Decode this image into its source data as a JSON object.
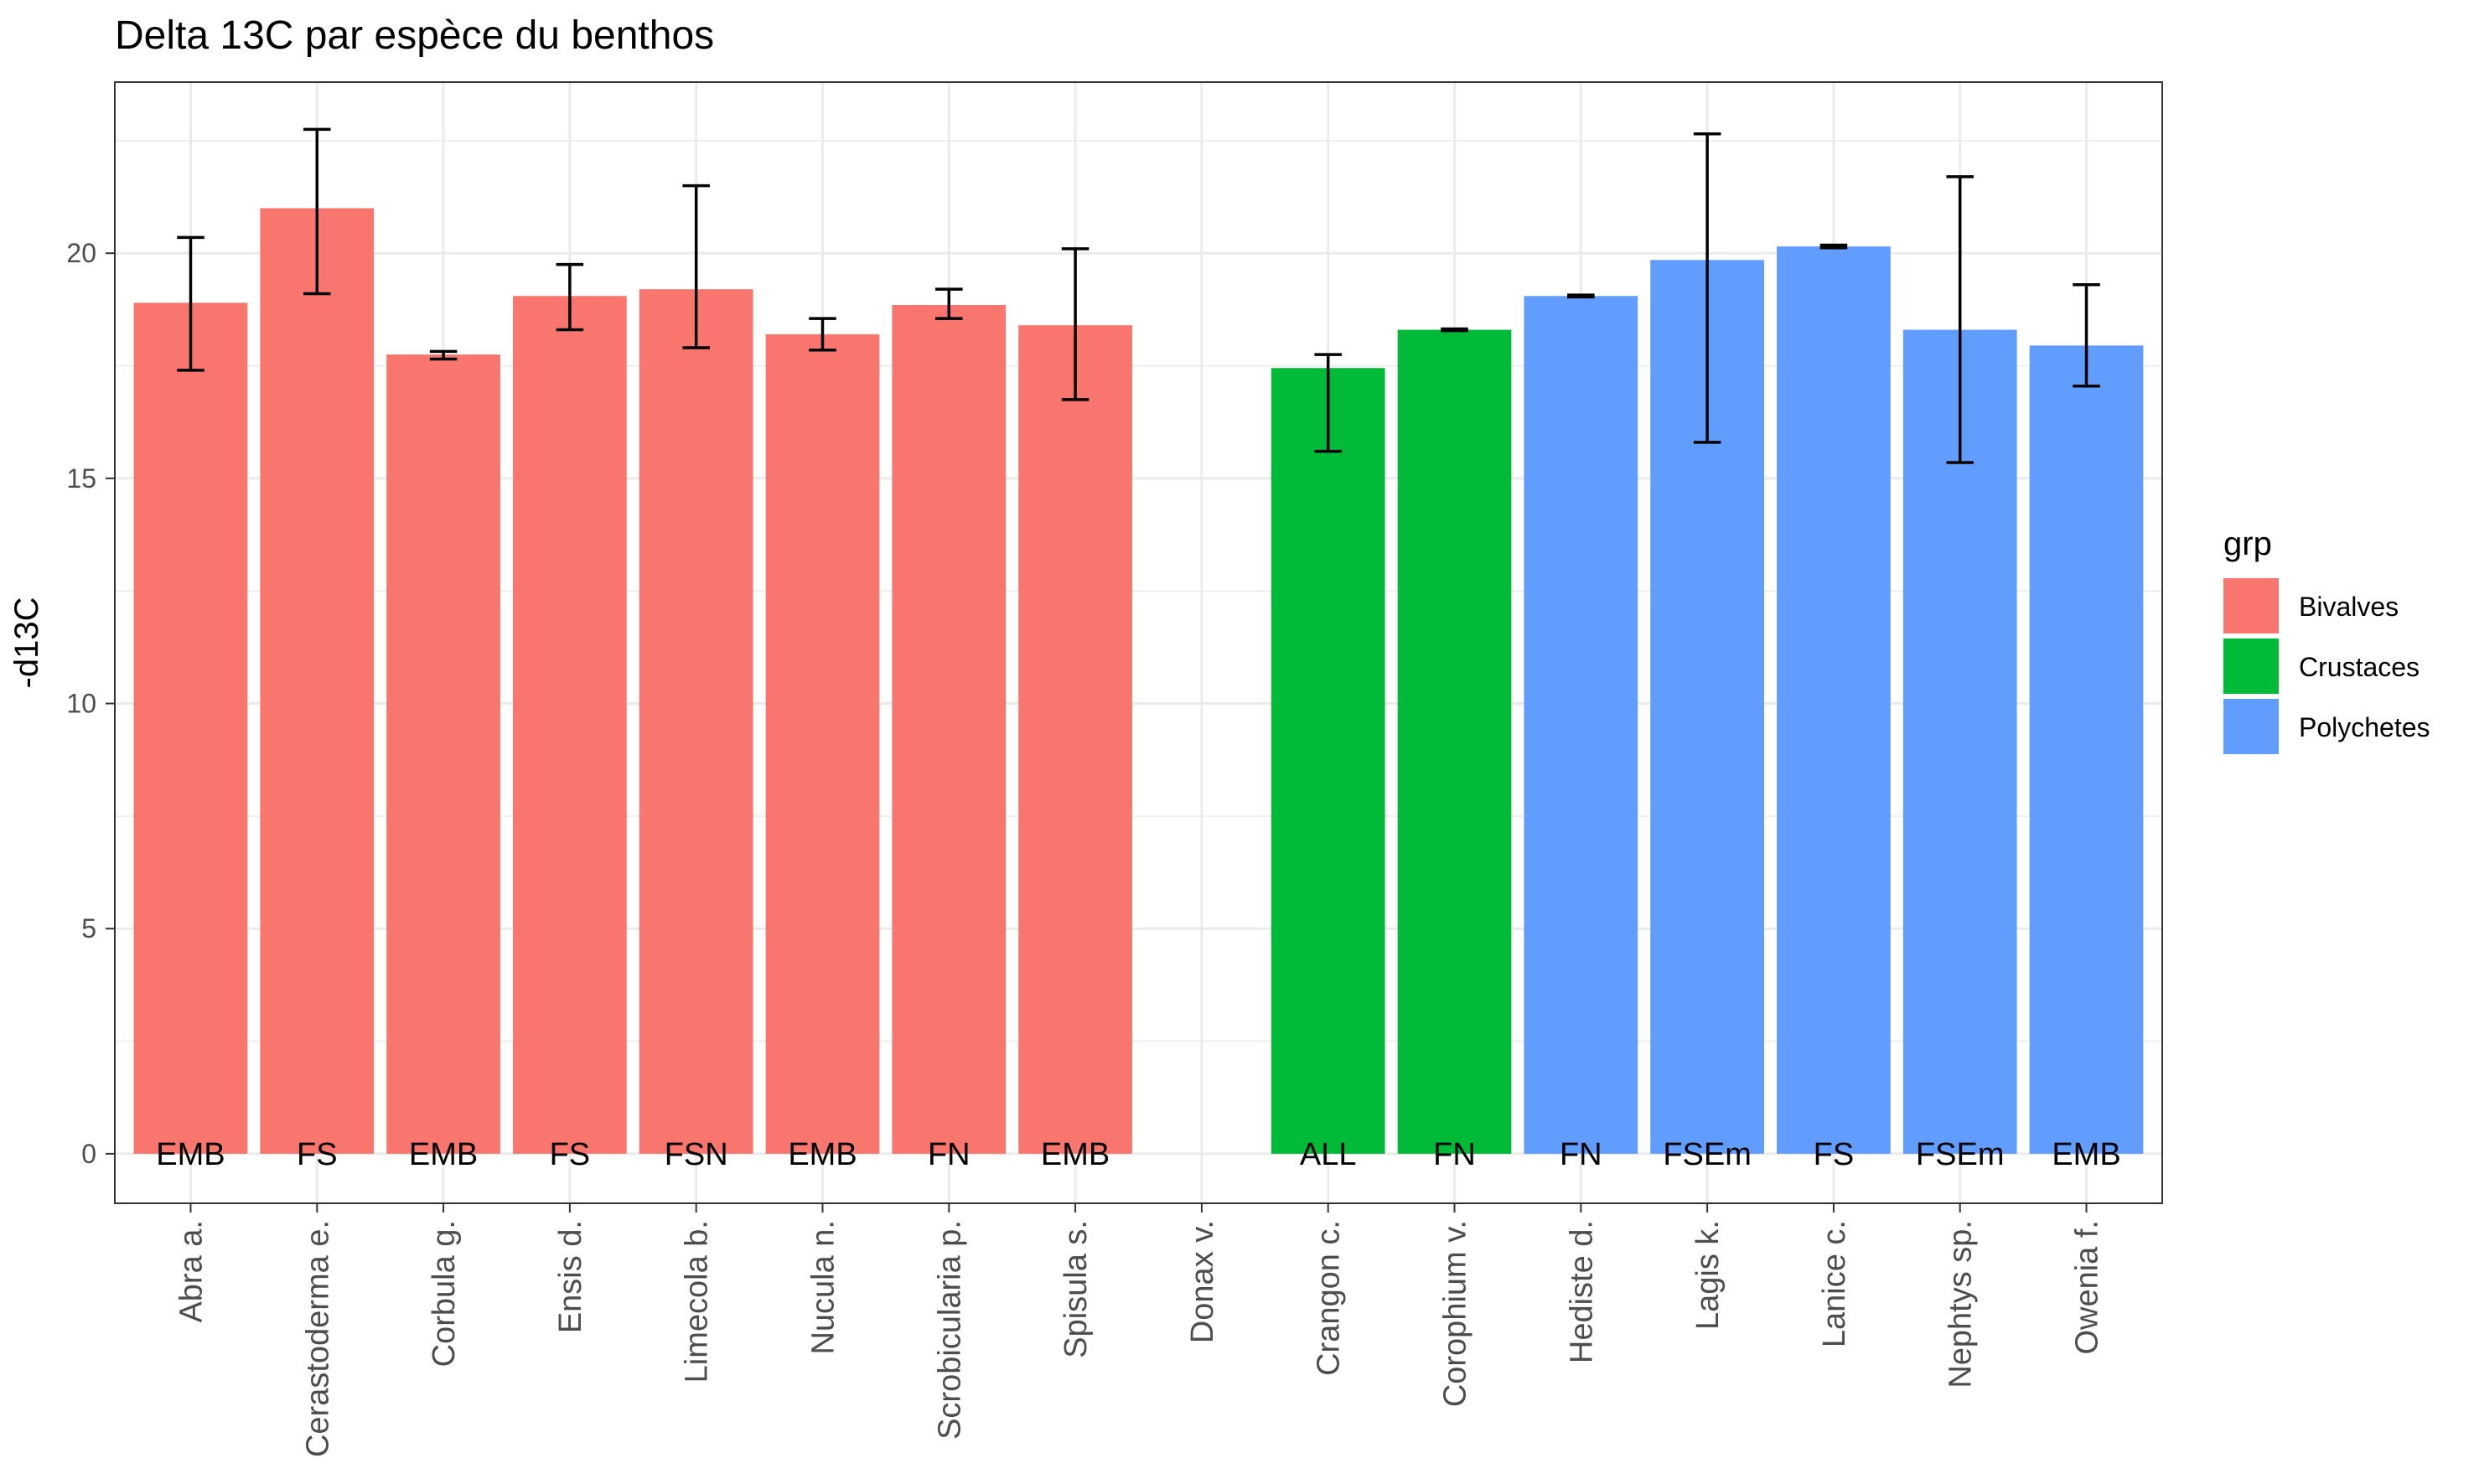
{
  "chart_data": {
    "type": "bar",
    "title": "Delta 13C par espèce du benthos",
    "xlabel": "",
    "ylabel": "-d13C",
    "ylim": [
      -1.1,
      23.8
    ],
    "yticks": [
      0,
      5,
      10,
      15,
      20
    ],
    "grid": true,
    "legend_position": "right",
    "legend_title": "grp",
    "groups": [
      {
        "name": "Bivalves",
        "color": "#F8766D"
      },
      {
        "name": "Crustaces",
        "color": "#00BA38"
      },
      {
        "name": "Polychetes",
        "color": "#619CFF"
      }
    ],
    "categories": [
      "Abra a.",
      "Cerastoderma e.",
      "Corbula g.",
      "Ensis d.",
      "Limecola b.",
      "Nucula n.",
      "Scrobicularia p.",
      "Spisula s.",
      "Donax v.",
      "Crangon c.",
      "Corophium v.",
      "Hediste d.",
      "Lagis k.",
      "Lanice c.",
      "Nephtys sp.",
      "Owenia f."
    ],
    "values": [
      18.9,
      21.0,
      17.75,
      19.05,
      19.2,
      18.2,
      18.85,
      18.4,
      null,
      17.45,
      18.3,
      19.05,
      19.85,
      20.15,
      18.3,
      17.95
    ],
    "error_low": [
      17.4,
      19.1,
      17.65,
      18.3,
      17.9,
      17.85,
      18.55,
      16.75,
      null,
      15.6,
      18.28,
      19.03,
      15.8,
      20.12,
      15.35,
      17.05
    ],
    "error_high": [
      20.35,
      22.75,
      17.82,
      19.75,
      21.5,
      18.55,
      19.2,
      20.1,
      null,
      17.75,
      18.32,
      19.07,
      22.65,
      20.18,
      21.7,
      19.3
    ],
    "group": [
      "Bivalves",
      "Bivalves",
      "Bivalves",
      "Bivalves",
      "Bivalves",
      "Bivalves",
      "Bivalves",
      "Bivalves",
      "Bivalves",
      "Crustaces",
      "Crustaces",
      "Polychetes",
      "Polychetes",
      "Polychetes",
      "Polychetes",
      "Polychetes"
    ],
    "bar_labels": [
      "EMB",
      "FS",
      "EMB",
      "FS",
      "FSN",
      "EMB",
      "FN",
      "EMB",
      "",
      "ALL",
      "FN",
      "FN",
      "FSEm",
      "FS",
      "FSEm",
      "EMB"
    ]
  }
}
